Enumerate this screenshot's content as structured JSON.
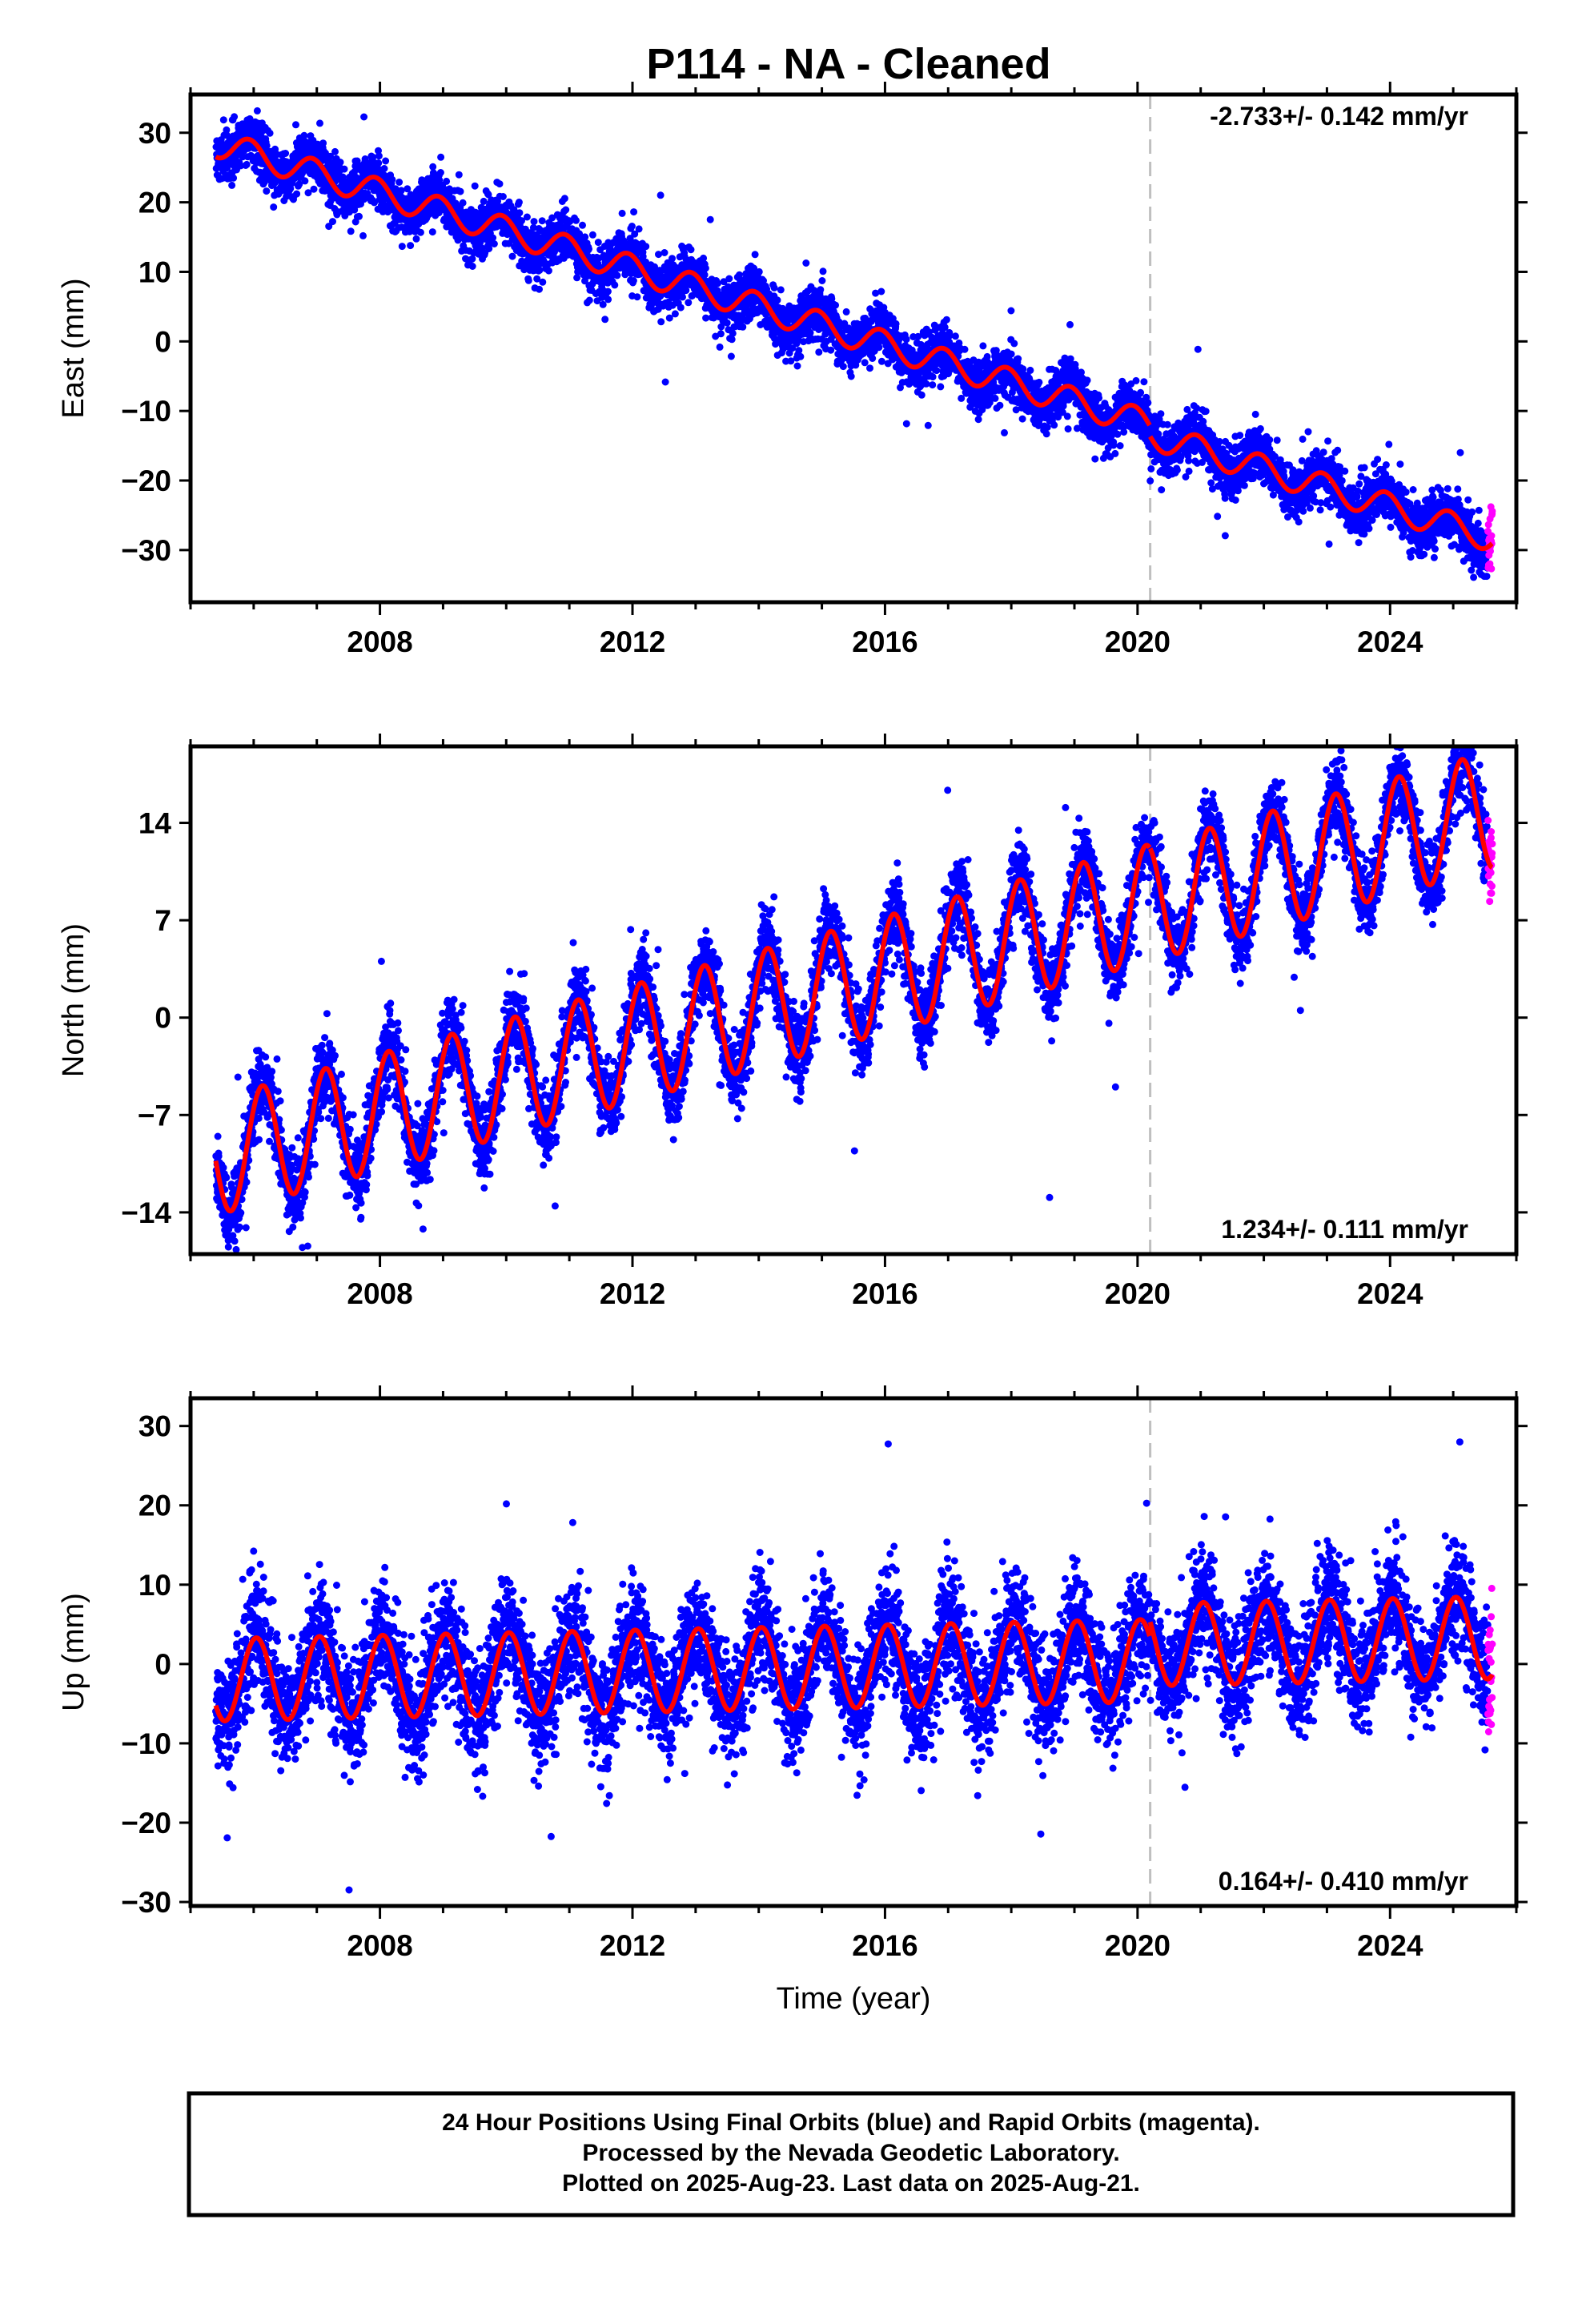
{
  "title": "P114  - NA - Cleaned",
  "colors": {
    "final_orbits": "#0000ff",
    "rapid_orbits": "#ff00ff",
    "model_fit": "#ff0000",
    "event_line": "#bfbfbf"
  },
  "chart_data": [
    {
      "type": "scatter",
      "ylabel": "East (mm)",
      "xlim": [
        2005.0,
        2026.0
      ],
      "ylim": [
        -37.5,
        35.5
      ],
      "yticks": [
        30,
        20,
        10,
        0,
        -10,
        -20,
        -30
      ],
      "xticks": [
        2008,
        2012,
        2016,
        2020,
        2024
      ],
      "rate_label": "-2.733+/- 0.142 mm/yr",
      "rate_position": "top-right",
      "event_line_x": 2020.2,
      "start": 2005.4,
      "end": 2025.62,
      "rapid_start": 2025.55,
      "model": {
        "intercept": 28.5,
        "rate": -2.733,
        "annual_amp": 2.0,
        "annual_phase": 2.0,
        "offset_after_event": -1.5
      },
      "scatter_sd": 1.8,
      "series": [
        {
          "name": "Final Orbits",
          "color": "#0000ff",
          "marker": "dot"
        },
        {
          "name": "Rapid Orbits",
          "color": "#ff00ff",
          "marker": "dot"
        },
        {
          "name": "Model Fit",
          "color": "#ff0000",
          "marker": "line"
        }
      ]
    },
    {
      "type": "scatter",
      "ylabel": "North (mm)",
      "xlim": [
        2005.0,
        2026.0
      ],
      "ylim": [
        -17.0,
        19.5
      ],
      "yticks": [
        14,
        7,
        0,
        -7,
        -14
      ],
      "xticks": [
        2008,
        2012,
        2016,
        2020,
        2024
      ],
      "rate_label": "1.234+/- 0.111 mm/yr",
      "rate_position": "bottom-right",
      "event_line_x": 2020.2,
      "start": 2005.4,
      "end": 2025.62,
      "rapid_start": 2025.55,
      "model": {
        "intercept": -10.0,
        "rate": 1.234,
        "annual_amp": 4.2,
        "annual_phase": 0.7,
        "offset_after_event": 0.0
      },
      "scatter_sd": 1.4,
      "series": [
        {
          "name": "Final Orbits",
          "color": "#0000ff",
          "marker": "dot"
        },
        {
          "name": "Rapid Orbits",
          "color": "#ff00ff",
          "marker": "dot"
        },
        {
          "name": "Model Fit",
          "color": "#ff0000",
          "marker": "line"
        }
      ]
    },
    {
      "type": "scatter",
      "ylabel": "Up (mm)",
      "xlim": [
        2005.0,
        2026.0
      ],
      "ylim": [
        -30.5,
        33.5
      ],
      "yticks": [
        30,
        20,
        10,
        0,
        -10,
        -20,
        -30
      ],
      "xticks": [
        2008,
        2012,
        2016,
        2020,
        2024
      ],
      "xlabel": "Time (year)",
      "rate_label": "0.164+/- 0.410 mm/yr",
      "rate_position": "bottom-right",
      "event_line_x": 2020.2,
      "start": 2005.4,
      "end": 2025.62,
      "rapid_start": 2025.55,
      "model": {
        "intercept": -2.0,
        "rate": 0.164,
        "annual_amp": 5.2,
        "annual_phase": 1.3,
        "offset_after_event": 2.0
      },
      "scatter_sd": 3.6,
      "series": [
        {
          "name": "Final Orbits",
          "color": "#0000ff",
          "marker": "dot"
        },
        {
          "name": "Rapid Orbits",
          "color": "#ff00ff",
          "marker": "dot"
        },
        {
          "name": "Model Fit",
          "color": "#ff0000",
          "marker": "line"
        }
      ]
    }
  ],
  "footer": {
    "line1": "24 Hour Positions Using Final Orbits (blue) and Rapid Orbits (magenta).",
    "line2": "Processed by the Nevada Geodetic Laboratory.",
    "line3": "Plotted on 2025-Aug-23. Last data on 2025-Aug-21."
  }
}
